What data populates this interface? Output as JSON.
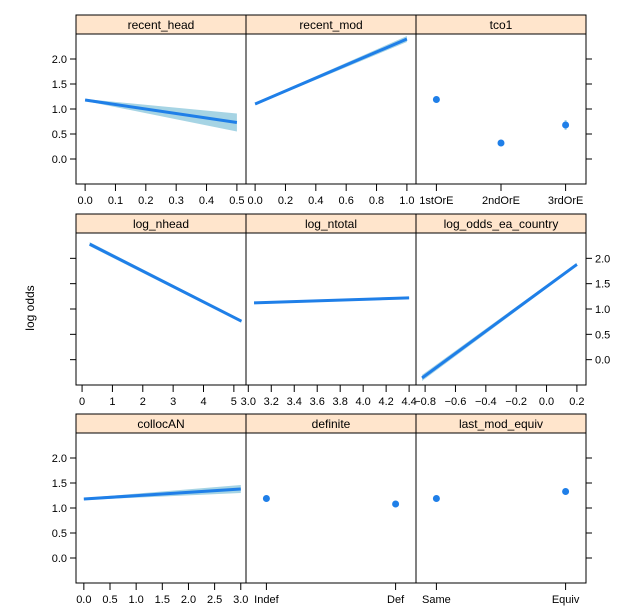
{
  "chart_data": {
    "type": "line",
    "ylabel": "log odds",
    "colors": {
      "strip": "#ffe5cc",
      "line": "#1f7fe8",
      "band": "#a6d4e4",
      "axis": "#000000"
    },
    "layout": "3x3 lattice of effect panels",
    "panels": [
      {
        "title": "recent_head",
        "kind": "numeric",
        "xlim": [
          -0.03,
          0.53
        ],
        "xticks": [
          "0.0",
          "0.1",
          "0.2",
          "0.3",
          "0.4",
          "0.5"
        ],
        "x": [
          0.0,
          0.5
        ],
        "fit": [
          1.18,
          0.73
        ],
        "lower": [
          1.16,
          0.55
        ],
        "upper": [
          1.2,
          0.91
        ]
      },
      {
        "title": "recent_mod",
        "kind": "numeric",
        "xlim": [
          -0.06,
          1.06
        ],
        "xticks": [
          "0.0",
          "0.2",
          "0.4",
          "0.6",
          "0.8",
          "1.0"
        ],
        "x": [
          0.0,
          1.0
        ],
        "fit": [
          1.1,
          2.4
        ],
        "lower": [
          1.08,
          2.34
        ],
        "upper": [
          1.12,
          2.46
        ]
      },
      {
        "title": "tco1",
        "kind": "categorical",
        "categories": [
          "1stOrE",
          "2ndOrE",
          "3rdOrE"
        ],
        "fit": [
          1.19,
          0.32,
          0.68
        ],
        "lower": [
          1.17,
          0.3,
          0.58
        ],
        "upper": [
          1.21,
          0.34,
          0.78
        ]
      },
      {
        "title": "log_nhead",
        "kind": "numeric",
        "xlim": [
          -0.2,
          5.4
        ],
        "xticks": [
          "0",
          "1",
          "2",
          "3",
          "4",
          "5"
        ],
        "x": [
          0.25,
          5.25
        ],
        "fit": [
          2.28,
          0.76
        ],
        "lower": [
          2.24,
          0.73
        ],
        "upper": [
          2.32,
          0.79
        ]
      },
      {
        "title": "log_ntotal",
        "kind": "numeric",
        "xlim": [
          2.98,
          4.46
        ],
        "xticks": [
          "3.0",
          "3.2",
          "3.4",
          "3.6",
          "3.8",
          "4.0",
          "4.2",
          "4.4"
        ],
        "x": [
          3.05,
          4.4
        ],
        "fit": [
          1.12,
          1.22
        ],
        "lower": [
          1.1,
          1.2
        ],
        "upper": [
          1.14,
          1.24
        ]
      },
      {
        "title": "log_odds_ea_country",
        "kind": "numeric",
        "xlim": [
          -0.86,
          0.26
        ],
        "xticks": [
          "−0.8",
          "−0.6",
          "−0.4",
          "−0.2",
          "0.0",
          "0.2"
        ],
        "x": [
          -0.82,
          0.2
        ],
        "fit": [
          -0.36,
          1.88
        ],
        "lower": [
          -0.42,
          1.85
        ],
        "upper": [
          -0.3,
          1.91
        ]
      },
      {
        "title": "collocAN",
        "kind": "numeric",
        "xlim": [
          -0.15,
          3.1
        ],
        "xticks": [
          "0.0",
          "0.5",
          "1.0",
          "1.5",
          "2.0",
          "2.5",
          "3.0"
        ],
        "x": [
          0.0,
          3.0
        ],
        "fit": [
          1.18,
          1.38
        ],
        "lower": [
          1.16,
          1.3
        ],
        "upper": [
          1.2,
          1.46
        ]
      },
      {
        "title": "definite",
        "kind": "categorical",
        "categories": [
          "Indef",
          "Def"
        ],
        "fit": [
          1.19,
          1.08
        ],
        "lower": [
          1.17,
          1.06
        ],
        "upper": [
          1.21,
          1.1
        ]
      },
      {
        "title": "last_mod_equiv",
        "kind": "categorical",
        "categories": [
          "Same",
          "Equiv"
        ],
        "fit": [
          1.19,
          1.33
        ],
        "lower": [
          1.17,
          1.31
        ],
        "upper": [
          1.21,
          1.35
        ]
      }
    ],
    "ylim": [
      -0.5,
      2.5
    ],
    "yticks": [
      "0.0",
      "0.5",
      "1.0",
      "1.5",
      "2.0"
    ],
    "ytick_values": [
      0.0,
      0.5,
      1.0,
      1.5,
      2.0
    ]
  }
}
